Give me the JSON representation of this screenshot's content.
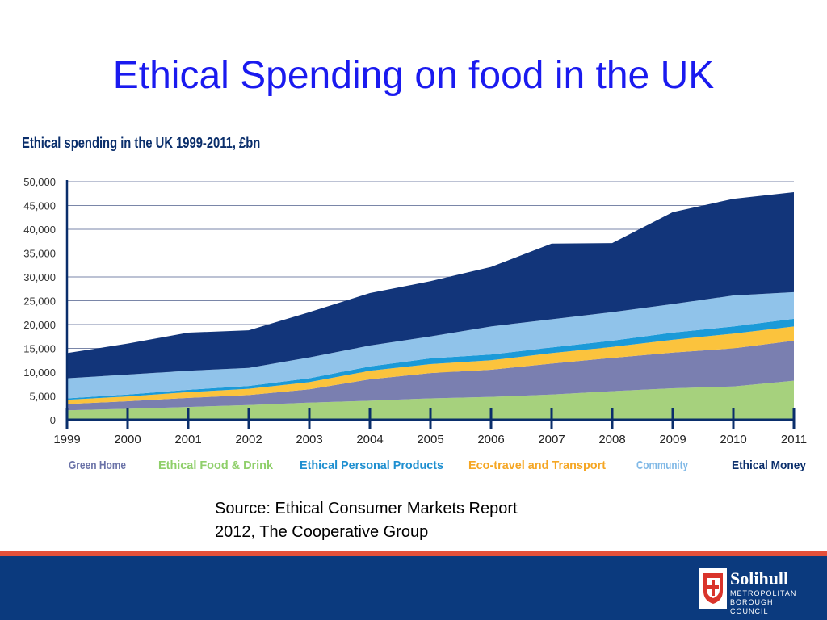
{
  "slide": {
    "title": "Ethical Spending on food in the UK",
    "source": "Source: Ethical Consumer Markets Report\n2012, The Cooperative Group"
  },
  "footer": {
    "logo_name": "Solihull",
    "logo_sub": "METROPOLITAN\nBOROUGH COUNCIL",
    "bar_color": "#0b3a7e",
    "stripe_color": "#e4503a"
  },
  "chart_data": {
    "type": "area",
    "stacked": true,
    "title": "Ethical spending in the UK 1999-2011, £bn",
    "x": [
      "1999",
      "2000",
      "2001",
      "2002",
      "2003",
      "2004",
      "2005",
      "2006",
      "2007",
      "2008",
      "2009",
      "2010",
      "2011"
    ],
    "ylim": [
      0,
      50000
    ],
    "yticks": [
      "0",
      "5,000",
      "10,000",
      "15,000",
      "20,000",
      "25,000",
      "30,000",
      "35,000",
      "40,000",
      "45,000",
      "50,000"
    ],
    "grid": true,
    "legend_position": "bottom",
    "series": [
      {
        "name": "Ethical Food & Drink",
        "color": "#a6d17d",
        "legend_color": "#8fcf6a",
        "values": [
          2000,
          2300,
          2700,
          3100,
          3600,
          4000,
          4500,
          4800,
          5300,
          6000,
          6600,
          7000,
          8200
        ]
      },
      {
        "name": "Green Home",
        "color": "#7a7fb0",
        "legend_color": "#6b73a8",
        "values": [
          1300,
          1600,
          1900,
          2100,
          2800,
          4500,
          5300,
          5700,
          6500,
          7000,
          7500,
          8000,
          8400
        ]
      },
      {
        "name": "Eco-travel and Transport",
        "color": "#fbc33d",
        "legend_color": "#f5a623",
        "values": [
          900,
          1000,
          1200,
          1300,
          1500,
          1800,
          1900,
          2000,
          2200,
          2300,
          2700,
          3100,
          3000
        ]
      },
      {
        "name": "Ethical Personal Products",
        "color": "#1b9ad8",
        "legend_color": "#1e8fd0",
        "values": [
          300,
          400,
          500,
          600,
          800,
          900,
          1200,
          1200,
          1200,
          1300,
          1500,
          1500,
          1600
        ]
      },
      {
        "name": "Community",
        "color": "#90c3ea",
        "legend_color": "#7fb8e6",
        "values": [
          4200,
          4200,
          4000,
          3800,
          4400,
          4400,
          4600,
          5900,
          5900,
          6000,
          6000,
          6500,
          5600
        ]
      },
      {
        "name": "Ethical Money",
        "color": "#12357a",
        "legend_color": "#0a2e6b",
        "values": [
          5300,
          6500,
          8000,
          7900,
          9500,
          11000,
          11600,
          12500,
          15900,
          14500,
          19300,
          20300,
          21000
        ]
      }
    ],
    "legend_order": [
      "Green Home",
      "Ethical Food & Drink",
      "Ethical Personal Products",
      "Eco-travel and Transport",
      "Community",
      "Ethical Money"
    ]
  }
}
